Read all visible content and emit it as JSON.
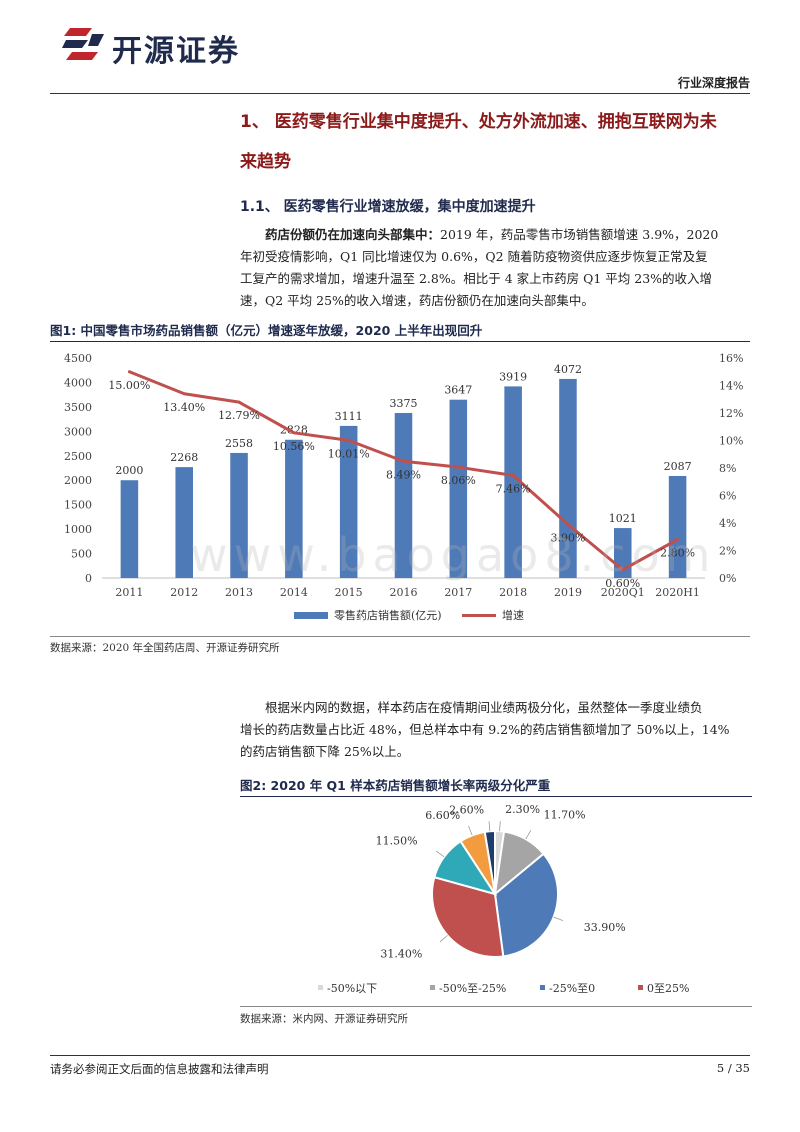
{
  "header": {
    "company": "开源证券",
    "report_type": "行业深度报告"
  },
  "section1": {
    "title": "1、 医药零售行业集中度提升、处方外流加速、拥抱互联网为未来趋势",
    "title_line1": "1、 医药零售行业集中度提升、处方外流加速、拥抱互联网为未",
    "title_line2": "来趋势"
  },
  "section1_1": {
    "title": "1.1、 医药零售行业增速放缓，集中度加速提升"
  },
  "para1": {
    "lead": "药店份额仍在加速向头部集中：",
    "line1_rest": "2019 年，药品零售市场销售额增速 3.9%，2020",
    "line2": "年初受疫情影响，Q1 同比增速仅为 0.6%，Q2 随着防疫物资供应逐步恢复正常及复",
    "line3": "工复产的需求增加，增速升温至 2.8%。相比于 4 家上市药房 Q1 平均 23%的收入增",
    "line4": "速，Q2 平均 25%的收入增速，药店份额仍在加速向头部集中。"
  },
  "figure1": {
    "title": "图1:  中国零售市场药品销售额（亿元）增速逐年放缓，2020 上半年出现回升",
    "source": "数据来源：2020 年全国药店周、开源证券研究所"
  },
  "para2": {
    "line1": "根据米内网的数据，样本药店在疫情期间业绩两极分化，虽然整体一季度业绩负",
    "line2": "增长的药店数量占比近 48%，但总样本中有 9.2%的药店销售额增加了 50%以上，14%",
    "line3": "的药店销售额下降 25%以上。"
  },
  "figure2": {
    "title": "图2:  2020 年 Q1 样本药店销售额增长率两级分化严重",
    "source": "数据来源：米内网、开源证券研究所"
  },
  "watermark": "www.baogao8.com",
  "footer": {
    "disclaimer": "请务必参阅正文后面的信息披露和法律声明",
    "page": "5 / 35"
  },
  "chart_data": [
    {
      "type": "bar",
      "title": "",
      "categories": [
        "2011",
        "2012",
        "2013",
        "2014",
        "2015",
        "2016",
        "2017",
        "2018",
        "2019",
        "2020Q1",
        "2020H1"
      ],
      "series": [
        {
          "name": "零售药店销售额(亿元)",
          "kind": "bar",
          "axis": "left",
          "color": "#4f7ab8",
          "values": [
            2000,
            2268,
            2558,
            2828,
            3111,
            3375,
            3647,
            3919,
            4072,
            1021,
            2087
          ],
          "labels": [
            "2000",
            "2268",
            "2558",
            "2828",
            "3111",
            "3375",
            "3647",
            "3919",
            "4072",
            "1021",
            "2087"
          ]
        },
        {
          "name": "增速",
          "kind": "line",
          "axis": "right",
          "color": "#c0504d",
          "values": [
            15.0,
            13.4,
            12.79,
            10.56,
            10.01,
            8.49,
            8.06,
            7.46,
            3.9,
            0.6,
            2.8
          ],
          "labels": [
            "15.00%",
            "13.40%",
            "12.79%",
            "10.56%",
            "10.01%",
            "8.49%",
            "8.06%",
            "7.46%",
            "3.90%",
            "0.60%",
            "2.80%"
          ]
        }
      ],
      "y_left": {
        "min": 0,
        "max": 4500,
        "ticks": [
          "0",
          "500",
          "1000",
          "1500",
          "2000",
          "2500",
          "3000",
          "3500",
          "4000",
          "4500"
        ]
      },
      "y_right": {
        "min": 0,
        "max": 16,
        "ticks": [
          "0%",
          "2%",
          "4%",
          "6%",
          "8%",
          "10%",
          "12%",
          "14%",
          "16%"
        ]
      },
      "grid": false,
      "legend": "bottom"
    },
    {
      "type": "pie",
      "title": "",
      "slices": [
        {
          "name": "-50%以下",
          "value": 2.3,
          "label": "2.30%",
          "color": "#d9d9d9"
        },
        {
          "name": "-50%至-25%",
          "value": 11.7,
          "label": "11.70%",
          "color": "#a5a5a5"
        },
        {
          "name": "-25%至0",
          "value": 33.9,
          "label": "33.90%",
          "color": "#4f7ab8"
        },
        {
          "name": "0至25%",
          "value": 31.4,
          "label": "31.40%",
          "color": "#c0504d"
        },
        {
          "name": "",
          "value": 11.5,
          "label": "11.50%",
          "color": "#2fa9b8"
        },
        {
          "name": "",
          "value": 6.6,
          "label": "6.60%",
          "color": "#f39c3f"
        },
        {
          "name": "",
          "value": 2.6,
          "label": "2.60%",
          "color": "#1f3c6e"
        }
      ],
      "legend_entries": [
        "-50%以下",
        "-50%至-25%",
        "-25%至0",
        "0至25%"
      ],
      "legend": "bottom"
    }
  ]
}
